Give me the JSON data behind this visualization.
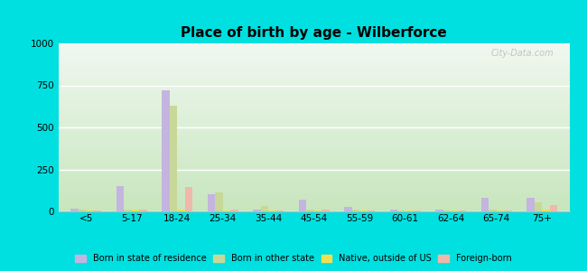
{
  "title": "Place of birth by age - Wilberforce",
  "categories": [
    "<5",
    "5-17",
    "18-24",
    "25-34",
    "35-44",
    "45-54",
    "55-59",
    "60-61",
    "62-64",
    "65-74",
    "75+"
  ],
  "series": {
    "Born in state of residence": [
      15,
      150,
      720,
      100,
      10,
      70,
      25,
      10,
      10,
      80,
      80
    ],
    "Born in other state": [
      10,
      10,
      630,
      115,
      30,
      10,
      10,
      5,
      5,
      10,
      55
    ],
    "Native, outside of US": [
      5,
      10,
      10,
      5,
      5,
      5,
      5,
      5,
      5,
      5,
      10
    ],
    "Foreign-born": [
      5,
      10,
      145,
      10,
      5,
      10,
      5,
      5,
      5,
      5,
      40
    ]
  },
  "colors": {
    "Born in state of residence": "#c4b4e0",
    "Born in other state": "#c8d898",
    "Native, outside of US": "#f0e050",
    "Foreign-born": "#f0b8a8"
  },
  "ylim": [
    0,
    1000
  ],
  "yticks": [
    0,
    250,
    500,
    750,
    1000
  ],
  "bg_top": "#f0f8f0",
  "bg_bottom": "#d8eec8",
  "outer_background": "#00e0e0",
  "watermark": "City-Data.com"
}
